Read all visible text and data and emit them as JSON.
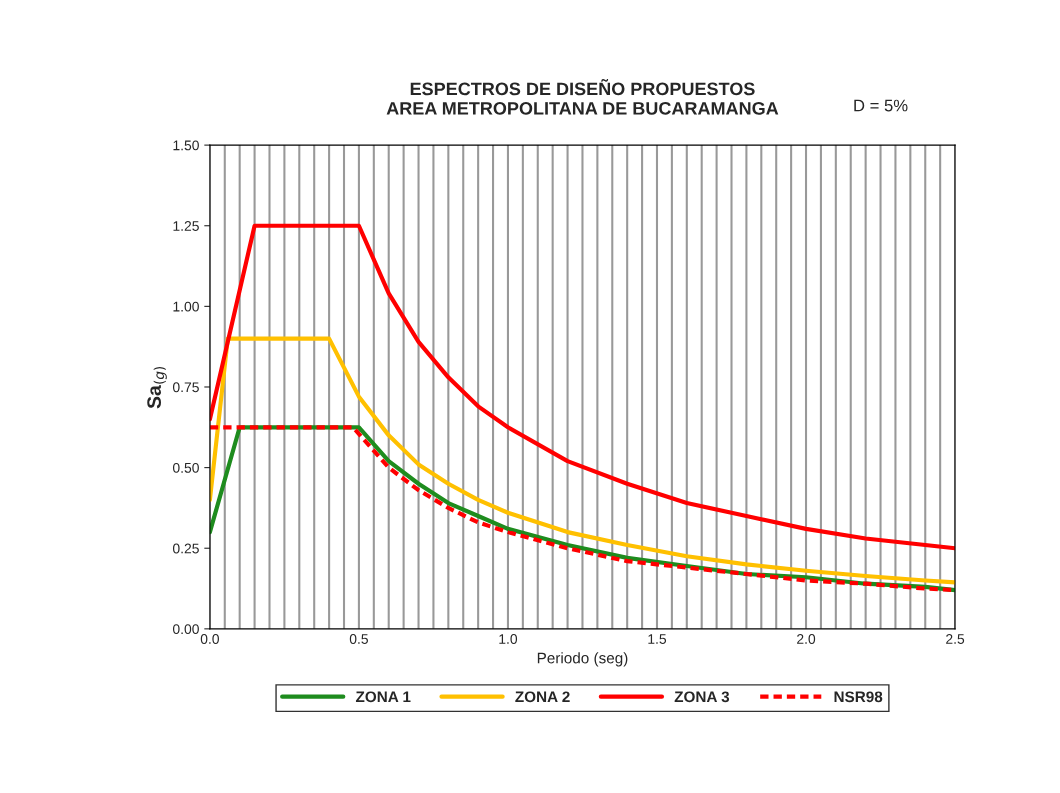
{
  "chart_data": {
    "type": "line",
    "title": "ESPECTROS DE DISEÑO PROPUESTOS\nAREA METROPOLITANA DE BUCARAMANGA",
    "xlabel": "Periodo (seg)",
    "ylabel": "Sa$_{(g)}$",
    "annotations": [
      "D = 5%"
    ],
    "xlim": [
      0,
      2.5
    ],
    "ylim": [
      0,
      1.5
    ],
    "xticks": [
      {
        "value": 0,
        "label": "0.0"
      },
      {
        "value": 0.05,
        "label": null
      },
      {
        "value": 0.1,
        "label": null
      },
      {
        "value": 0.15,
        "label": null
      },
      {
        "value": 0.2,
        "label": null
      },
      {
        "value": 0.25,
        "label": null
      },
      {
        "value": 0.3,
        "label": null
      },
      {
        "value": 0.35,
        "label": null
      },
      {
        "value": 0.4,
        "label": null
      },
      {
        "value": 0.45,
        "label": null
      },
      {
        "value": 0.5,
        "label": "0.5"
      },
      {
        "value": 0.55,
        "label": null
      },
      {
        "value": 0.6,
        "label": null
      },
      {
        "value": 0.65,
        "label": null
      },
      {
        "value": 0.7,
        "label": null
      },
      {
        "value": 0.75,
        "label": null
      },
      {
        "value": 0.8,
        "label": null
      },
      {
        "value": 0.85,
        "label": null
      },
      {
        "value": 0.9,
        "label": null
      },
      {
        "value": 0.95,
        "label": null
      },
      {
        "value": 1.0,
        "label": "1.0"
      },
      {
        "value": 1.05,
        "label": null
      },
      {
        "value": 1.1,
        "label": null
      },
      {
        "value": 1.15,
        "label": null
      },
      {
        "value": 1.2,
        "label": null
      },
      {
        "value": 1.25,
        "label": null
      },
      {
        "value": 1.3,
        "label": null
      },
      {
        "value": 1.35,
        "label": null
      },
      {
        "value": 1.4,
        "label": null
      },
      {
        "value": 1.45,
        "label": null
      },
      {
        "value": 1.5,
        "label": "1.5"
      },
      {
        "value": 1.55,
        "label": null
      },
      {
        "value": 1.6,
        "label": null
      },
      {
        "value": 1.65,
        "label": null
      },
      {
        "value": 1.7,
        "label": null
      },
      {
        "value": 1.75,
        "label": null
      },
      {
        "value": 1.8,
        "label": null
      },
      {
        "value": 1.85,
        "label": null
      },
      {
        "value": 1.9,
        "label": null
      },
      {
        "value": 1.95,
        "label": null
      },
      {
        "value": 2.0,
        "label": "2.0"
      },
      {
        "value": 2.05,
        "label": null
      },
      {
        "value": 2.1,
        "label": null
      },
      {
        "value": 2.15,
        "label": null
      },
      {
        "value": 2.2,
        "label": null
      },
      {
        "value": 2.25,
        "label": null
      },
      {
        "value": 2.3,
        "label": null
      },
      {
        "value": 2.35,
        "label": null
      },
      {
        "value": 2.4,
        "label": null
      },
      {
        "value": 2.45,
        "label": null
      },
      {
        "value": 2.5,
        "label": "2.5"
      }
    ],
    "yticks": [
      {
        "value": 0,
        "label": "0.00"
      },
      {
        "value": 0.25,
        "label": "0.25"
      },
      {
        "value": 0.5,
        "label": "0.50"
      },
      {
        "value": 0.75,
        "label": "0.75"
      },
      {
        "value": 1.0,
        "label": "1.00"
      },
      {
        "value": 1.25,
        "label": "1.25"
      },
      {
        "value": 1.5,
        "label": "1.50"
      }
    ],
    "grid": "x",
    "legend": "bottom",
    "marker": "none",
    "series": [
      {
        "name": "ZONA 1",
        "color": "#1e8c1e",
        "line_style": "solid",
        "x": [
          0,
          0.1,
          0.5,
          0.6,
          0.7,
          0.8,
          0.9,
          1.0,
          1.2,
          1.4,
          1.6,
          1.8,
          2.0,
          2.2,
          2.4,
          2.5
        ],
        "values": [
          0.3,
          0.625,
          0.625,
          0.52,
          0.45,
          0.39,
          0.35,
          0.31,
          0.26,
          0.22,
          0.195,
          0.17,
          0.16,
          0.14,
          0.13,
          0.12
        ]
      },
      {
        "name": "ZONA 2",
        "color": "#ffc000",
        "line_style": "solid",
        "x": [
          0,
          0.06,
          0.4,
          0.5,
          0.6,
          0.7,
          0.8,
          0.9,
          1.0,
          1.2,
          1.4,
          1.6,
          1.8,
          2.0,
          2.2,
          2.4,
          2.5
        ],
        "values": [
          0.4,
          0.9,
          0.9,
          0.72,
          0.6,
          0.51,
          0.45,
          0.4,
          0.36,
          0.3,
          0.26,
          0.225,
          0.2,
          0.18,
          0.164,
          0.15,
          0.144
        ]
      },
      {
        "name": "ZONA 3",
        "color": "#ff0000",
        "line_style": "solid",
        "x": [
          0,
          0.15,
          0.5,
          0.6,
          0.7,
          0.8,
          0.9,
          1.0,
          1.2,
          1.4,
          1.6,
          1.8,
          2.0,
          2.2,
          2.4,
          2.5
        ],
        "values": [
          0.65,
          1.25,
          1.25,
          1.04,
          0.89,
          0.78,
          0.69,
          0.625,
          0.52,
          0.45,
          0.39,
          0.35,
          0.31,
          0.28,
          0.26,
          0.25
        ]
      },
      {
        "name": "NSR98",
        "color": "#ff0000",
        "line_style": "dotted",
        "x": [
          0,
          0.48,
          0.6,
          0.7,
          0.8,
          0.9,
          1.0,
          1.2,
          1.4,
          1.6,
          1.8,
          2.0,
          2.2,
          2.4,
          2.5
        ],
        "values": [
          0.625,
          0.625,
          0.5,
          0.43,
          0.375,
          0.33,
          0.3,
          0.25,
          0.21,
          0.19,
          0.17,
          0.15,
          0.14,
          0.125,
          0.12
        ]
      }
    ]
  }
}
